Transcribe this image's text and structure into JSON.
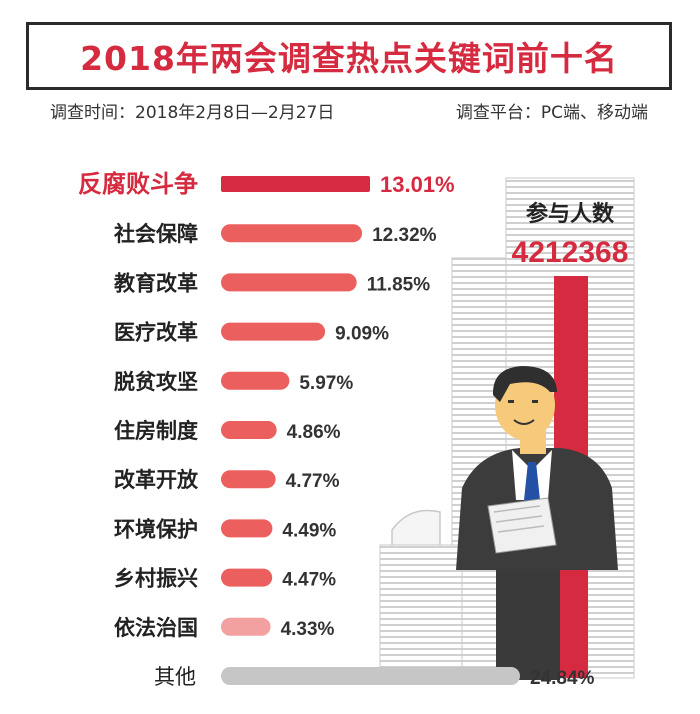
{
  "header": {
    "title": "2018年两会调查热点关键词前十名",
    "survey_time": "调查时间：2018年2月8日—2月27日",
    "survey_platform": "调查平台：PC端、移动端"
  },
  "participants": {
    "label": "参与人数",
    "count": "4212368"
  },
  "colors": {
    "accent": "#d52a3f",
    "bar_main": "#ec5f5f",
    "bar_light": "#f2a0a0",
    "bar_other": "#c6c6c6"
  },
  "chart_data": {
    "type": "bar",
    "orientation": "horizontal",
    "categories": [
      "反腐败斗争",
      "社会保障",
      "教育改革",
      "医疗改革",
      "脱贫攻坚",
      "住房制度",
      "改革开放",
      "环境保护",
      "乡村振兴",
      "依法治国",
      "其他"
    ],
    "values": [
      13.01,
      12.32,
      11.85,
      9.09,
      5.97,
      4.86,
      4.77,
      4.49,
      4.47,
      4.33,
      24.84
    ],
    "value_labels": [
      "13.01%",
      "12.32%",
      "11.85%",
      "9.09%",
      "5.97%",
      "4.86%",
      "4.77%",
      "4.49%",
      "4.47%",
      "4.33%",
      "24.84%"
    ],
    "title": "2018年两会调查热点关键词前十名",
    "unit": "%",
    "highlight": "反腐败斗争"
  }
}
